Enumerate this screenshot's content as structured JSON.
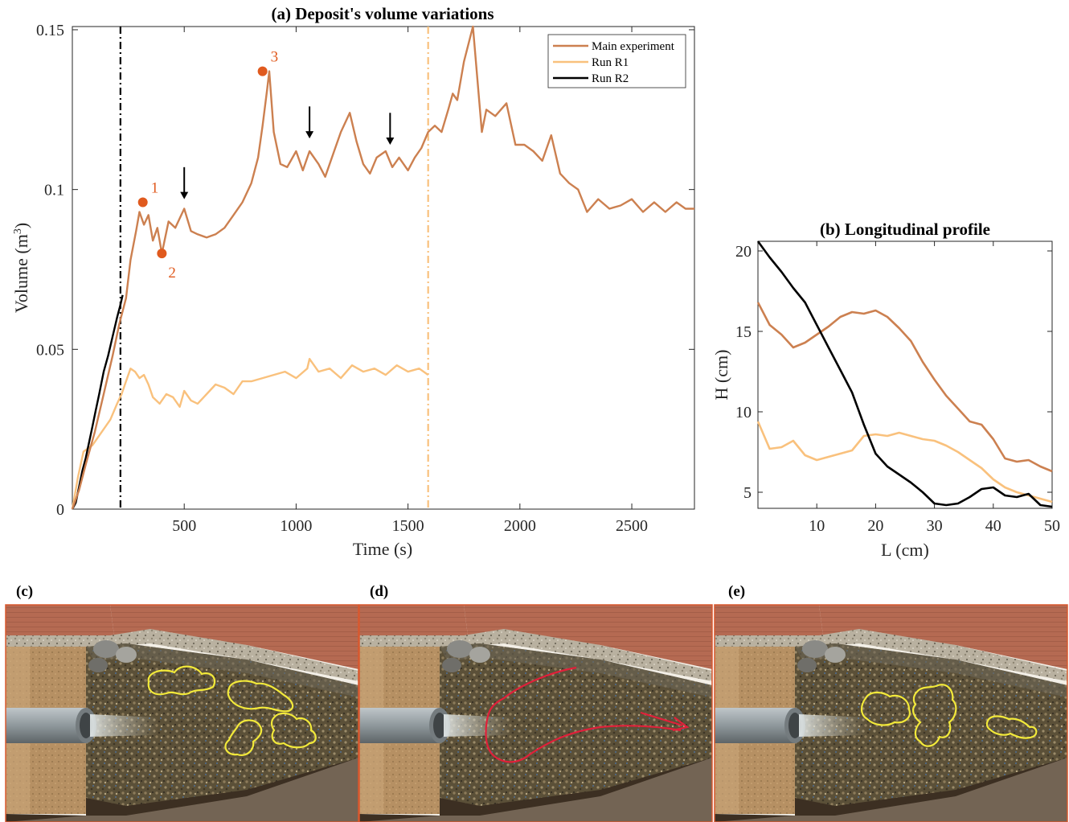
{
  "colors": {
    "main": "#CC8050",
    "r1": "#F9C17D",
    "r2": "#000000",
    "marker": "#E05A1E",
    "photo_frame": "#D9582E",
    "outline_yellow": "#F2E93A",
    "flow_red": "#E0203A"
  },
  "chart_data": [
    {
      "id": "a",
      "type": "line",
      "title": "(a) Deposit's volume variations",
      "xlabel": "Time (s)",
      "ylabel": "Volume (m",
      "ylabel_sup": "3",
      "ylabel_close": ")",
      "xlim": [
        0,
        2780
      ],
      "ylim": [
        0,
        0.151
      ],
      "xticks": [
        500,
        1000,
        1500,
        2000,
        2500
      ],
      "yticks": [
        0,
        0.05,
        0.1,
        0.15
      ],
      "ytick_labels": [
        "0",
        "0.05",
        "0.1",
        "0.15"
      ],
      "legend_position": "top-right",
      "series": [
        {
          "name": "Main experiment",
          "color_key": "main",
          "x": [
            0,
            30,
            60,
            100,
            140,
            180,
            210,
            240,
            260,
            285,
            300,
            320,
            340,
            360,
            380,
            400,
            430,
            460,
            500,
            530,
            560,
            600,
            640,
            680,
            720,
            760,
            800,
            830,
            850,
            870,
            880,
            900,
            930,
            960,
            1000,
            1030,
            1060,
            1100,
            1130,
            1170,
            1200,
            1240,
            1270,
            1300,
            1330,
            1360,
            1400,
            1430,
            1460,
            1500,
            1530,
            1560,
            1590,
            1620,
            1650,
            1680,
            1700,
            1720,
            1750,
            1790,
            1830,
            1850,
            1890,
            1940,
            1980,
            2020,
            2060,
            2100,
            2140,
            2180,
            2220,
            2260,
            2300,
            2350,
            2400,
            2450,
            2500,
            2550,
            2600,
            2650,
            2700,
            2740,
            2780
          ],
          "y": [
            0,
            0.006,
            0.014,
            0.024,
            0.036,
            0.048,
            0.058,
            0.066,
            0.078,
            0.087,
            0.093,
            0.089,
            0.092,
            0.084,
            0.088,
            0.08,
            0.09,
            0.088,
            0.094,
            0.087,
            0.086,
            0.085,
            0.086,
            0.088,
            0.092,
            0.096,
            0.102,
            0.11,
            0.12,
            0.131,
            0.137,
            0.118,
            0.108,
            0.107,
            0.112,
            0.106,
            0.112,
            0.108,
            0.104,
            0.112,
            0.118,
            0.124,
            0.115,
            0.108,
            0.105,
            0.11,
            0.112,
            0.107,
            0.11,
            0.106,
            0.11,
            0.113,
            0.118,
            0.12,
            0.118,
            0.125,
            0.13,
            0.128,
            0.14,
            0.151,
            0.118,
            0.125,
            0.123,
            0.127,
            0.114,
            0.114,
            0.112,
            0.109,
            0.117,
            0.105,
            0.102,
            0.1,
            0.093,
            0.097,
            0.094,
            0.095,
            0.097,
            0.093,
            0.096,
            0.093,
            0.096,
            0.094,
            0.094
          ]
        },
        {
          "name": "Run R1",
          "color_key": "r1",
          "x": [
            0,
            25,
            50,
            90,
            130,
            170,
            200,
            220,
            240,
            260,
            280,
            300,
            320,
            340,
            360,
            390,
            420,
            450,
            480,
            500,
            530,
            560,
            600,
            640,
            680,
            720,
            760,
            800,
            850,
            900,
            950,
            1000,
            1050,
            1060,
            1100,
            1150,
            1200,
            1250,
            1300,
            1350,
            1400,
            1450,
            1500,
            1550,
            1590
          ],
          "y": [
            0,
            0.01,
            0.018,
            0.02,
            0.024,
            0.028,
            0.033,
            0.036,
            0.04,
            0.044,
            0.043,
            0.041,
            0.042,
            0.039,
            0.035,
            0.033,
            0.036,
            0.035,
            0.032,
            0.037,
            0.034,
            0.033,
            0.036,
            0.039,
            0.038,
            0.036,
            0.04,
            0.04,
            0.041,
            0.042,
            0.043,
            0.041,
            0.044,
            0.047,
            0.043,
            0.044,
            0.041,
            0.045,
            0.043,
            0.044,
            0.042,
            0.045,
            0.043,
            0.044,
            0.042
          ]
        },
        {
          "name": "Run R2",
          "color_key": "r2",
          "x": [
            0,
            15,
            30,
            45,
            60,
            75,
            90,
            105,
            120,
            140,
            160,
            180,
            200,
            215,
            225
          ],
          "y": [
            0,
            0.002,
            0.007,
            0.012,
            0.016,
            0.021,
            0.026,
            0.031,
            0.036,
            0.043,
            0.048,
            0.054,
            0.06,
            0.064,
            0.067
          ]
        }
      ],
      "vlines": [
        {
          "x": 215,
          "color_key": "r2",
          "style": "dash-dot"
        },
        {
          "x": 1590,
          "color_key": "r1",
          "style": "dash-dot"
        }
      ],
      "markers": [
        {
          "label": "1",
          "x": 315,
          "y": 0.096
        },
        {
          "label": "2",
          "x": 400,
          "y": 0.08
        },
        {
          "label": "3",
          "x": 850,
          "y": 0.137
        }
      ],
      "arrows": [
        {
          "x": 500,
          "y_top": 0.107,
          "y_bottom": 0.097
        },
        {
          "x": 1060,
          "y_top": 0.126,
          "y_bottom": 0.116
        },
        {
          "x": 1420,
          "y_top": 0.124,
          "y_bottom": 0.114
        }
      ]
    },
    {
      "id": "b",
      "type": "line",
      "title": "(b) Longitudinal profile",
      "xlabel": "L (cm)",
      "ylabel": "H (cm)",
      "xlim": [
        0,
        50
      ],
      "ylim": [
        4,
        20.6
      ],
      "xticks": [
        10,
        20,
        30,
        40,
        50
      ],
      "yticks": [
        5,
        10,
        15,
        20
      ],
      "series": [
        {
          "color_key": "main",
          "x": [
            0,
            2,
            4,
            6,
            8,
            10,
            12,
            14,
            16,
            18,
            20,
            22,
            24,
            26,
            28,
            30,
            32,
            34,
            36,
            38,
            40,
            42,
            44,
            46,
            48,
            50
          ],
          "y": [
            16.8,
            15.4,
            14.8,
            14.0,
            14.3,
            14.8,
            15.3,
            15.9,
            16.2,
            16.1,
            16.3,
            15.9,
            15.2,
            14.4,
            13.1,
            12.0,
            11.0,
            10.2,
            9.4,
            9.2,
            8.3,
            7.1,
            6.9,
            7.0,
            6.6,
            6.3
          ]
        },
        {
          "color_key": "r1",
          "x": [
            0,
            2,
            4,
            6,
            8,
            10,
            12,
            14,
            16,
            18,
            20,
            22,
            24,
            26,
            28,
            30,
            32,
            34,
            36,
            38,
            40,
            42,
            44,
            46,
            48,
            50
          ],
          "y": [
            9.4,
            7.7,
            7.8,
            8.2,
            7.3,
            7.0,
            7.2,
            7.4,
            7.6,
            8.5,
            8.6,
            8.5,
            8.7,
            8.5,
            8.3,
            8.2,
            7.9,
            7.5,
            7.0,
            6.5,
            5.8,
            5.3,
            5.0,
            4.8,
            4.6,
            4.4
          ]
        },
        {
          "color_key": "r2",
          "x": [
            0,
            2,
            4,
            6,
            8,
            10,
            12,
            14,
            16,
            18,
            20,
            22,
            24,
            26,
            28,
            30,
            32,
            34,
            36,
            38,
            40,
            42,
            44,
            46,
            48,
            50
          ],
          "y": [
            20.6,
            19.6,
            18.7,
            17.7,
            16.8,
            15.4,
            14.0,
            12.6,
            11.2,
            9.2,
            7.4,
            6.6,
            6.1,
            5.6,
            5.0,
            4.3,
            4.2,
            4.3,
            4.7,
            5.2,
            5.3,
            4.8,
            4.7,
            4.9,
            4.2,
            4.1
          ]
        }
      ]
    }
  ],
  "photos": {
    "c_label": "(c)",
    "d_label": "(d)",
    "e_label": "(e)"
  }
}
